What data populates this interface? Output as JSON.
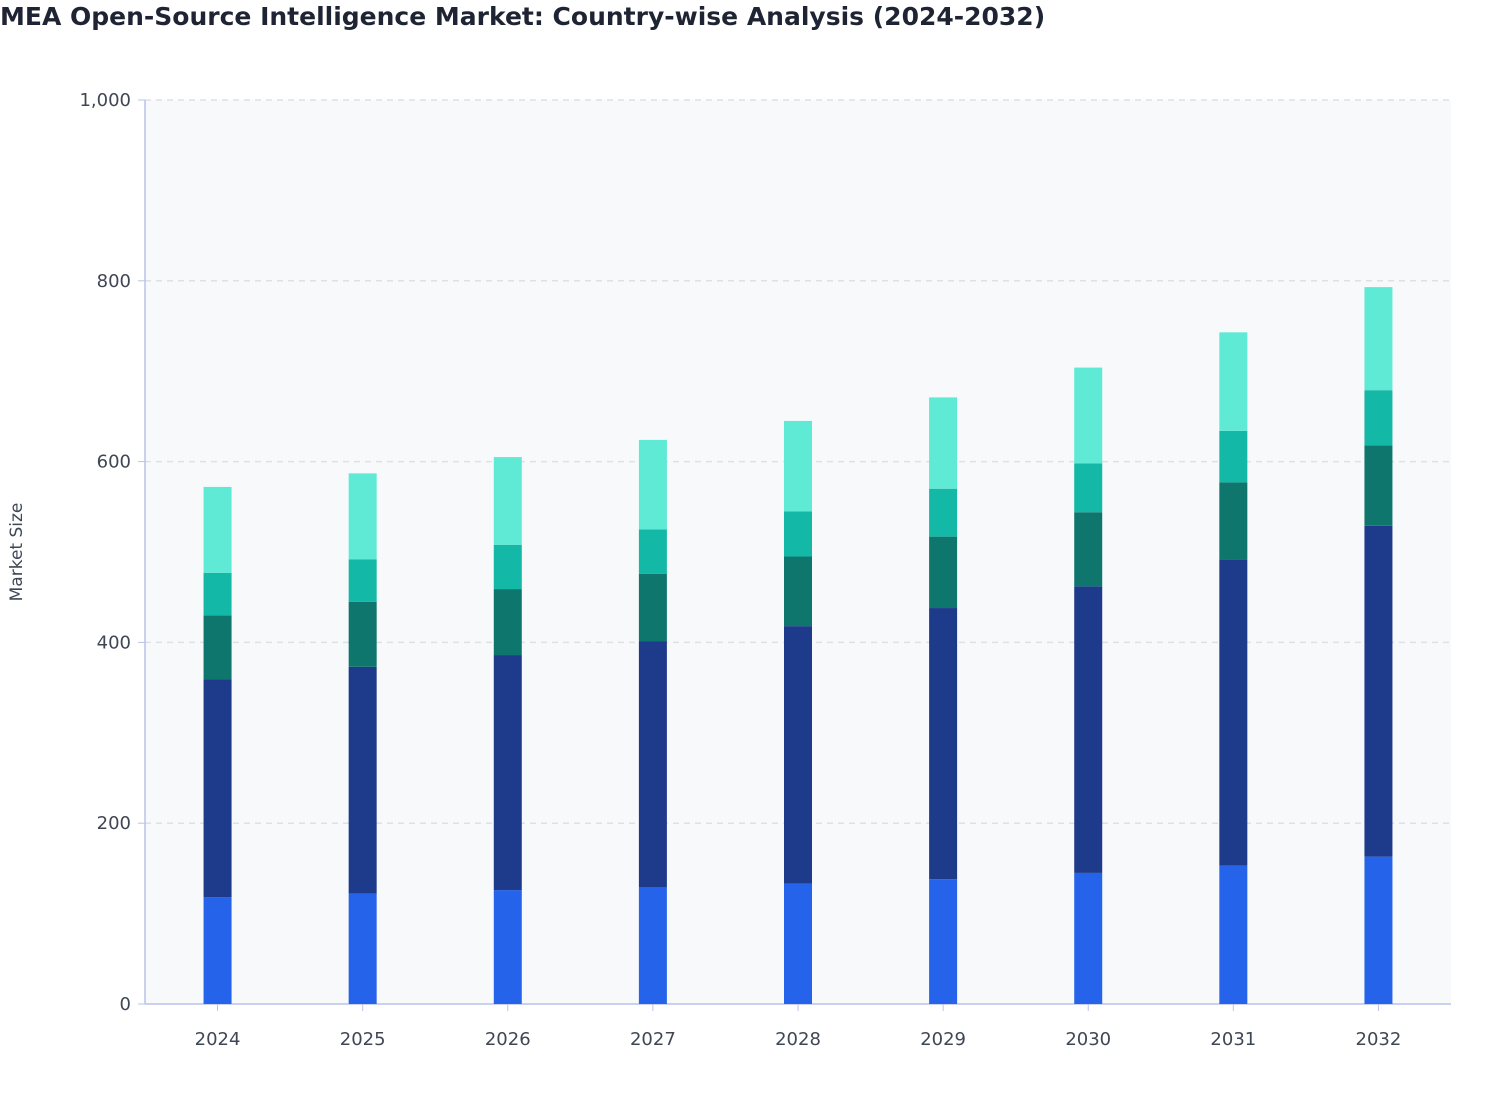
{
  "chart_data": {
    "type": "bar",
    "stacked": true,
    "title": "MEA Open-Source Intelligence Market: Country-wise Analysis (2024-2032)",
    "xlabel": "",
    "ylabel": "Market Size",
    "ylim": [
      0,
      1000
    ],
    "yticks": [
      0,
      200,
      400,
      600,
      800,
      1000
    ],
    "ytick_labels": [
      "0",
      "200",
      "400",
      "600",
      "800",
      "1,000"
    ],
    "grid": true,
    "categories": [
      "2024",
      "2025",
      "2026",
      "2027",
      "2028",
      "2029",
      "2030",
      "2031",
      "2032"
    ],
    "series": [
      {
        "color": "#2563eb",
        "values": [
          118,
          122,
          126,
          129,
          133,
          138,
          145,
          153,
          163
        ]
      },
      {
        "color": "#1e3a8a",
        "values": [
          241,
          251,
          260,
          272,
          285,
          300,
          317,
          339,
          366
        ]
      },
      {
        "color": "#0f766e",
        "values": [
          71,
          72,
          73,
          75,
          77,
          79,
          82,
          85,
          89
        ]
      },
      {
        "color": "#14b8a6",
        "values": [
          47,
          47,
          49,
          49,
          50,
          53,
          54,
          57,
          61
        ]
      },
      {
        "color": "#5eead4",
        "values": [
          95,
          95,
          97,
          99,
          100,
          101,
          106,
          109,
          114
        ]
      }
    ]
  }
}
